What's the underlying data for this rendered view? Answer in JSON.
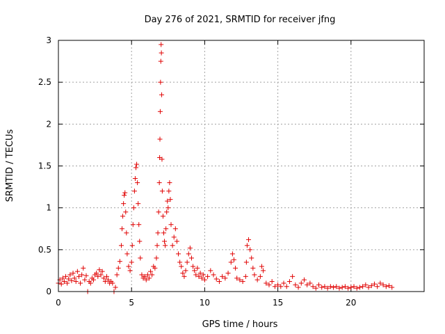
{
  "chart_data": {
    "type": "scatter",
    "title": "Day 276 of 2021, SRMTID for receiver jfng",
    "xlabel": "GPS time / hours",
    "ylabel": "SRMTID / TECUs",
    "xlim": [
      0,
      25
    ],
    "ylim": [
      0,
      3
    ],
    "xticks": [
      0,
      5,
      10,
      15,
      20
    ],
    "xtick_labels": [
      "0",
      "5",
      "10",
      "15",
      "20"
    ],
    "yticks": [
      0,
      0.5,
      1,
      1.5,
      2,
      2.5,
      3
    ],
    "ytick_labels": [
      "0",
      "0.5",
      "1",
      "1.5",
      "2",
      "2.5",
      "3"
    ],
    "grid": true,
    "marker": "+",
    "color": "#e00000",
    "series": [
      {
        "name": "SRMTID",
        "points": [
          [
            0.0,
            0.1
          ],
          [
            0.1,
            0.14
          ],
          [
            0.2,
            0.09
          ],
          [
            0.3,
            0.16
          ],
          [
            0.4,
            0.12
          ],
          [
            0.5,
            0.18
          ],
          [
            0.6,
            0.1
          ],
          [
            0.7,
            0.15
          ],
          [
            0.8,
            0.2
          ],
          [
            0.9,
            0.13
          ],
          [
            1.0,
            0.22
          ],
          [
            1.1,
            0.16
          ],
          [
            1.2,
            0.12
          ],
          [
            1.3,
            0.24
          ],
          [
            1.4,
            0.18
          ],
          [
            1.5,
            0.1
          ],
          [
            1.6,
            0.2
          ],
          [
            1.7,
            0.28
          ],
          [
            1.8,
            0.14
          ],
          [
            1.9,
            0.19
          ],
          [
            2.0,
            0.0
          ],
          [
            2.1,
            0.12
          ],
          [
            2.2,
            0.1
          ],
          [
            2.3,
            0.16
          ],
          [
            2.4,
            0.14
          ],
          [
            2.5,
            0.2
          ],
          [
            2.6,
            0.22
          ],
          [
            2.7,
            0.18
          ],
          [
            2.8,
            0.26
          ],
          [
            2.9,
            0.2
          ],
          [
            3.0,
            0.24
          ],
          [
            3.1,
            0.16
          ],
          [
            3.2,
            0.12
          ],
          [
            3.3,
            0.18
          ],
          [
            3.4,
            0.14
          ],
          [
            3.5,
            0.1
          ],
          [
            3.6,
            0.12
          ],
          [
            3.7,
            0.1
          ],
          [
            3.8,
            0.0
          ],
          [
            3.9,
            0.05
          ],
          [
            4.0,
            0.2
          ],
          [
            4.1,
            0.28
          ],
          [
            4.2,
            0.36
          ],
          [
            4.3,
            0.55
          ],
          [
            4.35,
            0.75
          ],
          [
            4.4,
            0.9
          ],
          [
            4.45,
            1.05
          ],
          [
            4.5,
            1.15
          ],
          [
            4.55,
            1.18
          ],
          [
            4.6,
            0.95
          ],
          [
            4.65,
            0.7
          ],
          [
            4.7,
            0.45
          ],
          [
            4.8,
            0.3
          ],
          [
            4.9,
            0.25
          ],
          [
            5.0,
            0.35
          ],
          [
            5.05,
            0.55
          ],
          [
            5.1,
            0.8
          ],
          [
            5.15,
            1.0
          ],
          [
            5.2,
            1.2
          ],
          [
            5.25,
            1.35
          ],
          [
            5.3,
            1.48
          ],
          [
            5.35,
            1.52
          ],
          [
            5.4,
            1.3
          ],
          [
            5.45,
            1.05
          ],
          [
            5.5,
            0.8
          ],
          [
            5.55,
            0.6
          ],
          [
            5.6,
            0.4
          ],
          [
            5.7,
            0.2
          ],
          [
            5.8,
            0.16
          ],
          [
            5.9,
            0.18
          ],
          [
            6.0,
            0.14
          ],
          [
            6.1,
            0.2
          ],
          [
            6.2,
            0.16
          ],
          [
            6.3,
            0.24
          ],
          [
            6.4,
            0.2
          ],
          [
            6.5,
            0.3
          ],
          [
            6.6,
            0.28
          ],
          [
            6.7,
            0.4
          ],
          [
            6.75,
            0.55
          ],
          [
            6.8,
            0.7
          ],
          [
            6.85,
            0.95
          ],
          [
            6.9,
            1.3
          ],
          [
            6.92,
            1.6
          ],
          [
            6.94,
            1.82
          ],
          [
            6.96,
            2.15
          ],
          [
            6.98,
            2.5
          ],
          [
            7.0,
            2.75
          ],
          [
            7.02,
            2.95
          ],
          [
            7.04,
            2.85
          ],
          [
            7.06,
            2.35
          ],
          [
            7.08,
            1.58
          ],
          [
            7.1,
            1.2
          ],
          [
            7.15,
            0.9
          ],
          [
            7.2,
            0.7
          ],
          [
            7.25,
            0.6
          ],
          [
            7.3,
            0.55
          ],
          [
            7.35,
            0.75
          ],
          [
            7.4,
            0.95
          ],
          [
            7.45,
            1.08
          ],
          [
            7.5,
            1.0
          ],
          [
            7.55,
            1.2
          ],
          [
            7.6,
            1.3
          ],
          [
            7.65,
            1.1
          ],
          [
            7.7,
            0.8
          ],
          [
            7.8,
            0.55
          ],
          [
            7.9,
            0.65
          ],
          [
            8.0,
            0.75
          ],
          [
            8.1,
            0.6
          ],
          [
            8.2,
            0.45
          ],
          [
            8.3,
            0.35
          ],
          [
            8.4,
            0.3
          ],
          [
            8.5,
            0.22
          ],
          [
            8.6,
            0.18
          ],
          [
            8.7,
            0.25
          ],
          [
            8.8,
            0.35
          ],
          [
            8.9,
            0.45
          ],
          [
            9.0,
            0.52
          ],
          [
            9.1,
            0.4
          ],
          [
            9.2,
            0.3
          ],
          [
            9.3,
            0.25
          ],
          [
            9.4,
            0.2
          ],
          [
            9.5,
            0.28
          ],
          [
            9.6,
            0.18
          ],
          [
            9.7,
            0.22
          ],
          [
            9.8,
            0.16
          ],
          [
            9.9,
            0.2
          ],
          [
            10.0,
            0.14
          ],
          [
            10.2,
            0.18
          ],
          [
            10.4,
            0.25
          ],
          [
            10.6,
            0.2
          ],
          [
            10.8,
            0.15
          ],
          [
            11.0,
            0.12
          ],
          [
            11.2,
            0.18
          ],
          [
            11.4,
            0.16
          ],
          [
            11.6,
            0.22
          ],
          [
            11.8,
            0.35
          ],
          [
            11.9,
            0.45
          ],
          [
            12.0,
            0.38
          ],
          [
            12.1,
            0.28
          ],
          [
            12.2,
            0.16
          ],
          [
            12.4,
            0.14
          ],
          [
            12.6,
            0.12
          ],
          [
            12.8,
            0.18
          ],
          [
            12.85,
            0.35
          ],
          [
            12.9,
            0.55
          ],
          [
            13.0,
            0.62
          ],
          [
            13.1,
            0.5
          ],
          [
            13.2,
            0.4
          ],
          [
            13.3,
            0.28
          ],
          [
            13.4,
            0.2
          ],
          [
            13.6,
            0.14
          ],
          [
            13.8,
            0.18
          ],
          [
            13.9,
            0.3
          ],
          [
            14.0,
            0.25
          ],
          [
            14.2,
            0.1
          ],
          [
            14.4,
            0.08
          ],
          [
            14.6,
            0.12
          ],
          [
            14.8,
            0.06
          ],
          [
            15.0,
            0.08
          ],
          [
            15.2,
            0.06
          ],
          [
            15.4,
            0.1
          ],
          [
            15.6,
            0.06
          ],
          [
            15.8,
            0.12
          ],
          [
            16.0,
            0.18
          ],
          [
            16.2,
            0.08
          ],
          [
            16.4,
            0.05
          ],
          [
            16.6,
            0.1
          ],
          [
            16.8,
            0.14
          ],
          [
            17.0,
            0.08
          ],
          [
            17.2,
            0.1
          ],
          [
            17.4,
            0.06
          ],
          [
            17.6,
            0.04
          ],
          [
            17.8,
            0.08
          ],
          [
            18.0,
            0.05
          ],
          [
            18.2,
            0.06
          ],
          [
            18.4,
            0.04
          ],
          [
            18.6,
            0.06
          ],
          [
            18.8,
            0.05
          ],
          [
            19.0,
            0.06
          ],
          [
            19.2,
            0.04
          ],
          [
            19.4,
            0.05
          ],
          [
            19.6,
            0.06
          ],
          [
            19.8,
            0.04
          ],
          [
            20.0,
            0.05
          ],
          [
            20.2,
            0.06
          ],
          [
            20.4,
            0.04
          ],
          [
            20.6,
            0.05
          ],
          [
            20.8,
            0.06
          ],
          [
            21.0,
            0.08
          ],
          [
            21.2,
            0.05
          ],
          [
            21.4,
            0.07
          ],
          [
            21.6,
            0.09
          ],
          [
            21.8,
            0.06
          ],
          [
            22.0,
            0.1
          ],
          [
            22.2,
            0.08
          ],
          [
            22.4,
            0.06
          ],
          [
            22.6,
            0.07
          ],
          [
            22.8,
            0.05
          ]
        ]
      }
    ]
  }
}
